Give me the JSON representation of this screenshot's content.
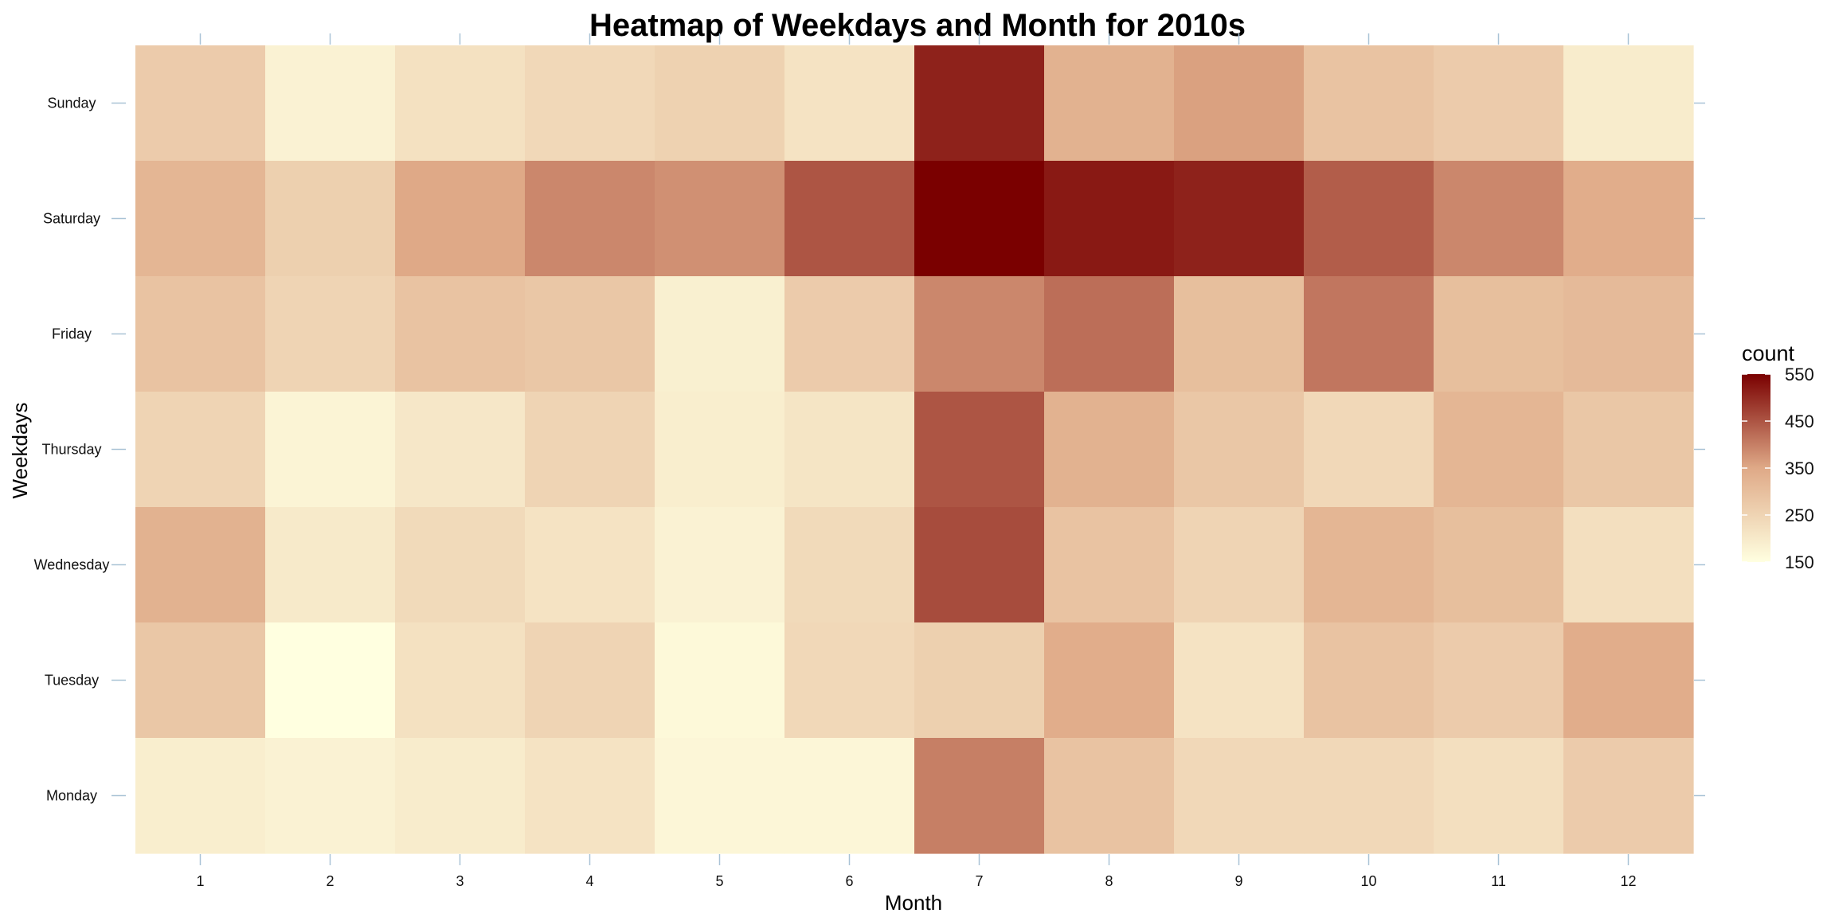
{
  "chart_data": {
    "type": "heatmap",
    "title": "Heatmap of Weekdays and Month for 2010s",
    "xlabel": "Month",
    "ylabel": "Weekdays",
    "x_categories": [
      "1",
      "2",
      "3",
      "4",
      "5",
      "6",
      "7",
      "8",
      "9",
      "10",
      "11",
      "12"
    ],
    "y_categories": [
      "Sunday",
      "Saturday",
      "Friday",
      "Thursday",
      "Wednesday",
      "Tuesday",
      "Monday"
    ],
    "values": [
      [
        270,
        180,
        220,
        240,
        255,
        215,
        510,
        330,
        360,
        290,
        270,
        195
      ],
      [
        320,
        260,
        350,
        390,
        380,
        450,
        550,
        520,
        510,
        440,
        390,
        340
      ],
      [
        290,
        250,
        290,
        280,
        185,
        270,
        390,
        420,
        300,
        410,
        300,
        310
      ],
      [
        250,
        175,
        205,
        250,
        190,
        210,
        450,
        330,
        280,
        240,
        320,
        280
      ],
      [
        330,
        200,
        235,
        215,
        180,
        235,
        460,
        290,
        250,
        320,
        300,
        225
      ],
      [
        280,
        150,
        220,
        250,
        165,
        240,
        260,
        340,
        215,
        290,
        270,
        340
      ],
      [
        190,
        180,
        195,
        215,
        170,
        170,
        400,
        290,
        240,
        240,
        225,
        270
      ]
    ],
    "color_scale": {
      "low": "#ffffe0",
      "mid": "#dfa987",
      "high": "#7a0000",
      "min": 150,
      "max": 550
    },
    "legend": {
      "title": "count",
      "ticks": [
        "550",
        "450",
        "350",
        "250",
        "150"
      ],
      "placement": "right"
    },
    "grid": false
  }
}
